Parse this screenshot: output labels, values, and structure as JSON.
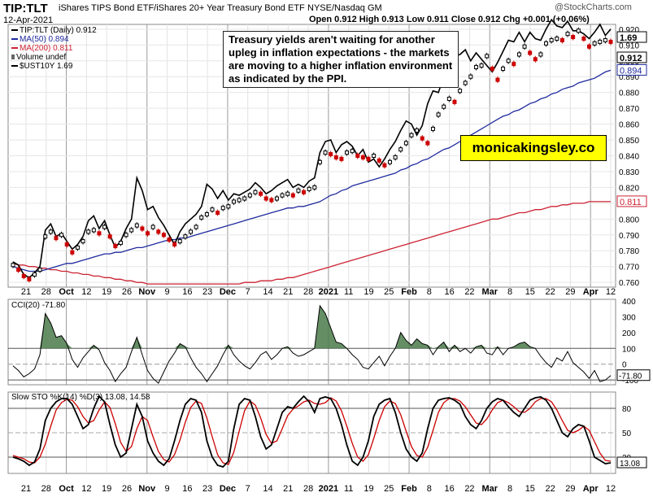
{
  "header": {
    "symbol": "TIP:TLT",
    "description": "iShares TIPS Bond ETF/iShares 20+ Year Treasury Bond ETF",
    "exchange": "NYSE/Nasdaq GM",
    "watermark": "@StockCharts.com",
    "date": "12-Apr-2021",
    "ohlc_line": "Open 0.912  High 0.913  Low 0.911  Close 0.912  Chg +0.001 (+0.06%)"
  },
  "annotation": "Treasury yields aren't waiting for another upleg in inflation expectations - the markets are moving to a higher inflation environment as indicated by the PPI.",
  "brand": "monicakingsley.co",
  "chart_data": [
    {
      "type": "line",
      "title": "TIP:TLT (Daily) 0.912",
      "legend": [
        "TIP:TLT (Daily) 0.912",
        "MA(50) 0.894",
        "MA(200) 0.811",
        "Volume undef",
        "$UST10Y 1.69"
      ],
      "x_ticks": [
        "21",
        "28",
        "Oct",
        "12",
        "19",
        "26",
        "Nov",
        "9",
        "16",
        "23",
        "Dec",
        "7",
        "14",
        "21",
        "28",
        "2021",
        "11",
        "19",
        "25",
        "Feb",
        "8",
        "16",
        "22",
        "Mar",
        "8",
        "15",
        "22",
        "29",
        "Apr",
        "12"
      ],
      "y_ticks": [
        0.76,
        0.77,
        0.78,
        0.79,
        0.8,
        0.81,
        0.82,
        0.83,
        0.84,
        0.85,
        0.86,
        0.87,
        0.88,
        0.89,
        0.9,
        0.91,
        0.92
      ],
      "ylim": [
        0.757,
        0.923
      ],
      "last_value_labels": [
        "1.69",
        "0.920",
        "0.912",
        "0.894",
        "0.811"
      ],
      "series": [
        {
          "name": "TIP:TLT",
          "color": "#000000",
          "values": [
            0.771,
            0.768,
            0.764,
            0.762,
            0.765,
            0.768,
            0.789,
            0.792,
            0.788,
            0.79,
            0.784,
            0.779,
            0.782,
            0.786,
            0.792,
            0.793,
            0.791,
            0.795,
            0.789,
            0.783,
            0.785,
            0.79,
            0.793,
            0.796,
            0.794,
            0.791,
            0.795,
            0.792,
            0.79,
            0.787,
            0.784,
            0.786,
            0.789,
            0.792,
            0.795,
            0.801,
            0.803,
            0.806,
            0.804,
            0.807,
            0.808,
            0.811,
            0.812,
            0.813,
            0.815,
            0.817,
            0.816,
            0.813,
            0.812,
            0.813,
            0.815,
            0.816,
            0.815,
            0.818,
            0.817,
            0.819,
            0.82,
            0.836,
            0.842,
            0.841,
            0.839,
            0.838,
            0.842,
            0.843,
            0.84,
            0.839,
            0.838,
            0.84,
            0.837,
            0.834,
            0.836,
            0.839,
            0.844,
            0.848,
            0.853,
            0.856,
            0.851,
            0.848,
            0.857,
            0.866,
            0.871,
            0.876,
            0.874,
            0.881,
            0.886,
            0.89,
            0.896,
            0.897,
            0.903,
            0.895,
            0.888,
            0.895,
            0.9,
            0.898,
            0.904,
            0.909,
            0.905,
            0.901,
            0.904,
            0.911,
            0.913,
            0.914,
            0.913,
            0.917,
            0.915,
            0.919,
            0.914,
            0.909,
            0.911,
            0.912,
            0.913,
            0.912
          ]
        },
        {
          "name": "$UST10Y",
          "color": "#000000",
          "values": [
            0.773,
            0.771,
            0.765,
            0.763,
            0.766,
            0.77,
            0.793,
            0.797,
            0.789,
            0.791,
            0.786,
            0.781,
            0.784,
            0.789,
            0.799,
            0.802,
            0.794,
            0.799,
            0.79,
            0.782,
            0.786,
            0.794,
            0.8,
            0.826,
            0.818,
            0.806,
            0.808,
            0.801,
            0.796,
            0.79,
            0.784,
            0.792,
            0.797,
            0.8,
            0.803,
            0.808,
            0.822,
            0.819,
            0.813,
            0.818,
            0.812,
            0.816,
            0.815,
            0.817,
            0.819,
            0.823,
            0.82,
            0.816,
            0.818,
            0.821,
            0.823,
            0.825,
            0.82,
            0.822,
            0.82,
            0.824,
            0.826,
            0.842,
            0.849,
            0.85,
            0.842,
            0.847,
            0.849,
            0.846,
            0.84,
            0.844,
            0.836,
            0.838,
            0.833,
            0.838,
            0.844,
            0.849,
            0.856,
            0.862,
            0.86,
            0.853,
            0.859,
            0.873,
            0.881,
            0.88,
            0.89,
            0.893,
            0.903,
            0.904,
            0.907,
            0.9,
            0.905,
            0.901,
            0.897,
            0.893,
            0.899,
            0.906,
            0.913,
            0.912,
            0.918,
            0.912,
            0.918,
            0.914,
            0.913,
            0.92,
            0.926,
            0.922,
            0.921,
            0.925,
            0.919,
            0.919,
            0.917,
            0.914,
            0.918,
            0.923,
            0.916,
            0.92
          ]
        },
        {
          "name": "MA(50)",
          "color": "#1f2a9e",
          "values": [
            0.77,
            0.769,
            0.768,
            0.767,
            0.767,
            0.767,
            0.768,
            0.769,
            0.77,
            0.771,
            0.772,
            0.772,
            0.773,
            0.774,
            0.775,
            0.776,
            0.777,
            0.778,
            0.778,
            0.779,
            0.779,
            0.78,
            0.781,
            0.782,
            0.782,
            0.783,
            0.784,
            0.785,
            0.786,
            0.787,
            0.787,
            0.788,
            0.788,
            0.789,
            0.79,
            0.791,
            0.792,
            0.793,
            0.794,
            0.795,
            0.796,
            0.797,
            0.798,
            0.799,
            0.8,
            0.801,
            0.802,
            0.803,
            0.804,
            0.805,
            0.806,
            0.807,
            0.807,
            0.808,
            0.808,
            0.809,
            0.81,
            0.811,
            0.813,
            0.815,
            0.816,
            0.818,
            0.819,
            0.821,
            0.822,
            0.823,
            0.824,
            0.825,
            0.826,
            0.827,
            0.828,
            0.829,
            0.831,
            0.832,
            0.834,
            0.835,
            0.837,
            0.838,
            0.84,
            0.842,
            0.844,
            0.845,
            0.847,
            0.849,
            0.851,
            0.853,
            0.855,
            0.857,
            0.859,
            0.861,
            0.863,
            0.865,
            0.866,
            0.868,
            0.869,
            0.871,
            0.873,
            0.874,
            0.876,
            0.877,
            0.879,
            0.88,
            0.882,
            0.883,
            0.884,
            0.886,
            0.887,
            0.888,
            0.889,
            0.891,
            0.893,
            0.894
          ]
        },
        {
          "name": "MA(200)",
          "color": "#cc2233",
          "values": [
            0.772,
            0.771,
            0.771,
            0.77,
            0.77,
            0.769,
            0.769,
            0.768,
            0.768,
            0.767,
            0.767,
            0.766,
            0.766,
            0.765,
            0.765,
            0.764,
            0.764,
            0.763,
            0.763,
            0.762,
            0.762,
            0.761,
            0.761,
            0.76,
            0.76,
            0.759,
            0.759,
            0.759,
            0.759,
            0.759,
            0.759,
            0.759,
            0.759,
            0.759,
            0.759,
            0.759,
            0.759,
            0.759,
            0.759,
            0.759,
            0.759,
            0.759,
            0.759,
            0.76,
            0.76,
            0.76,
            0.761,
            0.761,
            0.761,
            0.762,
            0.762,
            0.763,
            0.763,
            0.764,
            0.765,
            0.766,
            0.767,
            0.768,
            0.769,
            0.77,
            0.771,
            0.772,
            0.773,
            0.774,
            0.775,
            0.776,
            0.777,
            0.778,
            0.779,
            0.78,
            0.781,
            0.782,
            0.783,
            0.784,
            0.785,
            0.786,
            0.787,
            0.788,
            0.789,
            0.79,
            0.791,
            0.792,
            0.793,
            0.794,
            0.795,
            0.796,
            0.797,
            0.798,
            0.799,
            0.8,
            0.8,
            0.801,
            0.802,
            0.803,
            0.804,
            0.804,
            0.805,
            0.806,
            0.806,
            0.807,
            0.808,
            0.808,
            0.809,
            0.809,
            0.81,
            0.81,
            0.81,
            0.811,
            0.811,
            0.811,
            0.811,
            0.811
          ]
        }
      ]
    },
    {
      "type": "area",
      "title": "CCI(20) -71.80",
      "y_ticks": [
        -100,
        0,
        100,
        200,
        300,
        400
      ],
      "ylim": [
        -130,
        410
      ],
      "overbought": 100,
      "oversold": -100,
      "last_value_label": "-71.80",
      "series": [
        {
          "name": "CCI(20)",
          "color": "#000000",
          "fill": "#4a7a4a",
          "values": [
            -10,
            -40,
            -80,
            -60,
            -30,
            60,
            320,
            260,
            170,
            180,
            130,
            30,
            -20,
            40,
            80,
            120,
            90,
            10,
            -40,
            -110,
            -60,
            -20,
            80,
            170,
            60,
            -40,
            -90,
            -120,
            -50,
            20,
            70,
            130,
            110,
            40,
            -20,
            -60,
            -110,
            -60,
            -10,
            60,
            120,
            60,
            20,
            -10,
            -30,
            10,
            60,
            80,
            30,
            60,
            100,
            110,
            70,
            50,
            60,
            80,
            100,
            370,
            320,
            230,
            140,
            130,
            100,
            60,
            30,
            -20,
            -30,
            10,
            50,
            -10,
            50,
            100,
            200,
            150,
            120,
            160,
            130,
            120,
            60,
            110,
            140,
            80,
            120,
            80,
            100,
            70,
            110,
            120,
            70,
            60,
            110,
            60,
            100,
            110,
            130,
            140,
            110,
            100,
            50,
            10,
            -20,
            40,
            20,
            80,
            10,
            -20,
            -50,
            -90,
            -40,
            -110,
            -100,
            -72
          ]
        }
      ]
    },
    {
      "type": "line",
      "title": "Slow STO %K(14) %D(3) 13.08, 14.58",
      "y_ticks": [
        20,
        50,
        80
      ],
      "ylim": [
        0,
        100
      ],
      "last_value_label": "13.08",
      "series": [
        {
          "name": "%K(14)",
          "color": "#000000",
          "values": [
            20,
            18,
            15,
            10,
            14,
            30,
            65,
            80,
            88,
            92,
            92,
            85,
            70,
            55,
            60,
            80,
            95,
            88,
            60,
            35,
            20,
            25,
            55,
            85,
            70,
            40,
            25,
            15,
            10,
            18,
            40,
            65,
            85,
            92,
            90,
            75,
            40,
            20,
            10,
            8,
            15,
            55,
            85,
            92,
            90,
            70,
            45,
            30,
            35,
            55,
            75,
            82,
            80,
            88,
            95,
            88,
            75,
            92,
            94,
            92,
            80,
            60,
            35,
            15,
            10,
            20,
            40,
            70,
            85,
            90,
            92,
            75,
            50,
            30,
            20,
            15,
            25,
            55,
            80,
            90,
            92,
            93,
            90,
            85,
            70,
            60,
            55,
            65,
            80,
            88,
            92,
            90,
            82,
            75,
            70,
            80,
            90,
            93,
            94,
            90,
            80,
            65,
            50,
            45,
            55,
            60,
            58,
            40,
            20,
            16,
            12,
            13
          ]
        },
        {
          "name": "%D(3)",
          "color": "#cc0000",
          "values": [
            22,
            20,
            18,
            14,
            13,
            20,
            36,
            58,
            78,
            87,
            91,
            90,
            82,
            70,
            62,
            65,
            78,
            88,
            81,
            61,
            38,
            27,
            33,
            55,
            70,
            65,
            45,
            27,
            17,
            14,
            23,
            41,
            63,
            81,
            89,
            86,
            68,
            45,
            23,
            13,
            11,
            26,
            52,
            77,
            89,
            84,
            68,
            48,
            37,
            40,
            55,
            71,
            79,
            83,
            88,
            90,
            86,
            85,
            87,
            93,
            89,
            77,
            58,
            37,
            20,
            15,
            23,
            43,
            65,
            82,
            89,
            86,
            72,
            52,
            33,
            22,
            20,
            32,
            53,
            75,
            87,
            92,
            92,
            89,
            82,
            72,
            62,
            60,
            67,
            78,
            87,
            90,
            87,
            82,
            76,
            75,
            80,
            88,
            92,
            92,
            88,
            78,
            65,
            53,
            50,
            53,
            58,
            53,
            39,
            25,
            16,
            15
          ]
        }
      ]
    }
  ]
}
